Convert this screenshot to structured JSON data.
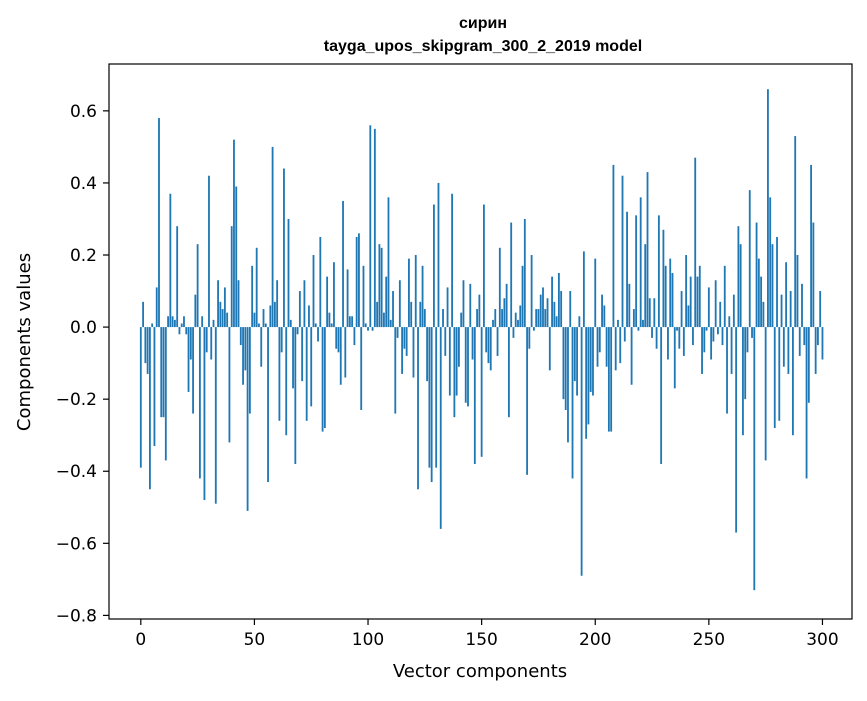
{
  "chart_data": {
    "type": "bar",
    "title": "сирин",
    "subtitle": "tayga_upos_skipgram_300_2_2019 model",
    "xlabel": "Vector components",
    "ylabel": "Components values",
    "xlim": [
      -14,
      313
    ],
    "ylim": [
      -0.81,
      0.73
    ],
    "xticks": [
      0,
      50,
      100,
      150,
      200,
      250,
      300
    ],
    "xtick_labels": [
      "0",
      "50",
      "100",
      "150",
      "200",
      "250",
      "300"
    ],
    "yticks": [
      -0.8,
      -0.6,
      -0.4,
      -0.2,
      0.0,
      0.2,
      0.4,
      0.6
    ],
    "ytick_labels": [
      "−0.8",
      "−0.6",
      "−0.4",
      "−0.2",
      "0.0",
      "0.2",
      "0.4",
      "0.6"
    ],
    "bar_color": "#1f77b4",
    "grid": false,
    "values": [
      -0.39,
      0.07,
      -0.1,
      -0.13,
      -0.45,
      0.01,
      -0.33,
      0.11,
      0.58,
      -0.25,
      -0.25,
      -0.37,
      0.03,
      0.37,
      0.03,
      0.02,
      0.28,
      -0.02,
      0.01,
      0.03,
      -0.02,
      -0.18,
      -0.09,
      -0.24,
      0.09,
      0.23,
      -0.42,
      0.03,
      -0.48,
      -0.07,
      0.42,
      -0.09,
      0.02,
      -0.49,
      0.13,
      0.07,
      0.05,
      0.11,
      0.04,
      -0.32,
      0.28,
      0.52,
      0.39,
      0.13,
      -0.05,
      -0.16,
      -0.12,
      -0.51,
      -0.24,
      0.17,
      0.04,
      0.22,
      0.01,
      -0.11,
      0.05,
      0.01,
      -0.43,
      0.06,
      0.5,
      0.07,
      0.13,
      -0.26,
      -0.07,
      0.44,
      -0.3,
      0.3,
      0.02,
      -0.17,
      -0.38,
      -0.02,
      0.1,
      -0.15,
      0.13,
      -0.26,
      0.06,
      -0.22,
      0.2,
      0.01,
      -0.04,
      0.25,
      -0.29,
      -0.28,
      0.14,
      0.04,
      0.01,
      0.18,
      -0.06,
      -0.07,
      -0.16,
      0.35,
      -0.14,
      0.16,
      0.03,
      0.03,
      -0.05,
      0.25,
      0.26,
      -0.23,
      0.17,
      0.01,
      -0.01,
      0.56,
      -0.01,
      0.55,
      0.07,
      0.23,
      0.22,
      0.04,
      0.14,
      0.36,
      0.02,
      0.1,
      -0.24,
      -0.03,
      0.13,
      -0.13,
      -0.06,
      -0.08,
      0.19,
      0.07,
      -0.14,
      0.2,
      -0.45,
      0.07,
      0.17,
      0.05,
      -0.15,
      -0.39,
      -0.43,
      0.34,
      -0.39,
      0.4,
      -0.56,
      0.05,
      -0.08,
      0.11,
      -0.19,
      0.37,
      -0.25,
      -0.19,
      -0.11,
      0.04,
      0.13,
      -0.21,
      -0.22,
      0.12,
      -0.09,
      -0.38,
      0.05,
      0.09,
      -0.36,
      0.34,
      -0.07,
      -0.1,
      -0.12,
      0.02,
      0.05,
      -0.08,
      0.22,
      0.05,
      0.08,
      0.12,
      -0.25,
      0.29,
      -0.03,
      0.04,
      0.02,
      0.06,
      0.17,
      0.3,
      -0.41,
      -0.06,
      0.2,
      -0.01,
      0.05,
      0.05,
      0.09,
      0.11,
      0.05,
      0.08,
      -0.12,
      0.14,
      0.07,
      0.03,
      0.15,
      0.1,
      -0.2,
      -0.23,
      -0.32,
      0.1,
      -0.42,
      -0.15,
      -0.19,
      0.03,
      -0.69,
      0.21,
      -0.31,
      -0.27,
      -0.18,
      -0.19,
      0.19,
      -0.11,
      -0.07,
      0.09,
      0.06,
      -0.11,
      -0.29,
      -0.29,
      0.45,
      -0.12,
      0.02,
      -0.1,
      0.42,
      -0.04,
      0.32,
      0.12,
      -0.16,
      0.05,
      0.31,
      -0.01,
      0.36,
      0.02,
      0.23,
      0.43,
      0.08,
      -0.03,
      0.08,
      -0.06,
      0.31,
      -0.38,
      0.27,
      0.17,
      -0.09,
      0.19,
      0.15,
      -0.17,
      -0.01,
      -0.06,
      0.1,
      -0.08,
      0.2,
      0.06,
      0.14,
      -0.05,
      0.47,
      0.14,
      0.17,
      -0.13,
      -0.07,
      -0.01,
      0.11,
      -0.09,
      -0.04,
      0.13,
      -0.02,
      0.07,
      -0.05,
      0.17,
      -0.24,
      0.03,
      -0.13,
      0.09,
      -0.57,
      0.28,
      0.23,
      -0.3,
      -0.2,
      -0.07,
      0.38,
      -0.03,
      -0.73,
      0.29,
      0.19,
      0.14,
      0.07,
      -0.37,
      0.66,
      0.36,
      0.23,
      -0.28,
      0.25,
      -0.26,
      0.09,
      -0.11,
      0.18,
      -0.13,
      0.1,
      -0.3,
      0.53,
      0.2,
      -0.08,
      0.12,
      -0.05,
      -0.42,
      -0.21,
      0.45,
      0.29,
      -0.13,
      -0.05,
      0.1,
      -0.09
    ]
  }
}
